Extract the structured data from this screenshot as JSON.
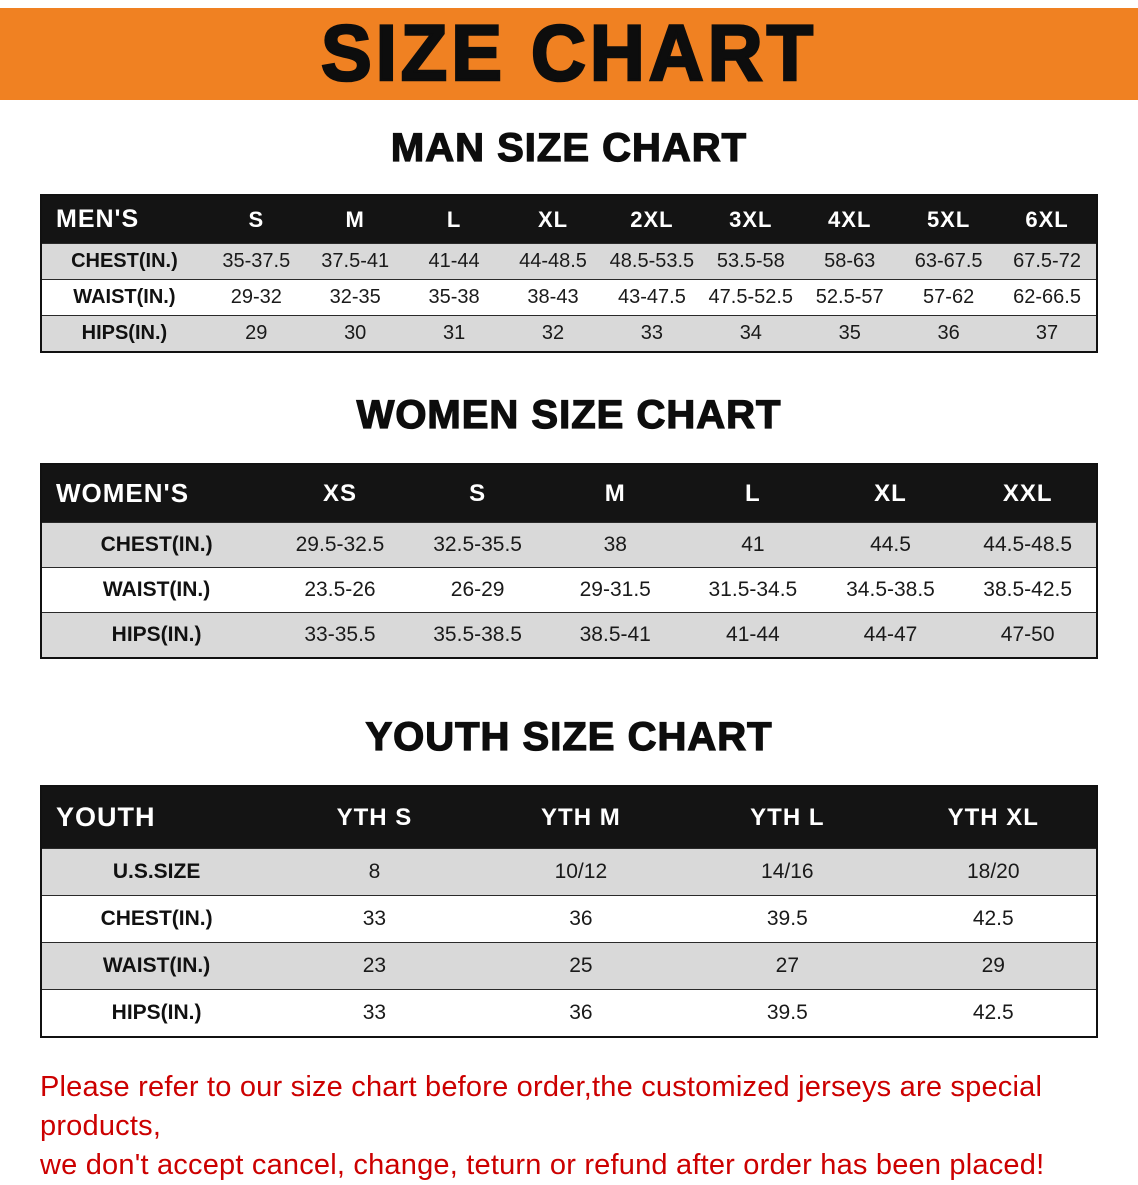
{
  "banner": {
    "title": "SIZE CHART"
  },
  "colors": {
    "banner_bg": "#f08122",
    "table_header_bg": "#141414",
    "alt_row_bg": "#d9d9d9",
    "disclaimer_text": "#cc0000"
  },
  "sections": [
    {
      "heading": "MAN SIZE CHART",
      "table": {
        "header": [
          "MEN'S",
          "S",
          "M",
          "L",
          "XL",
          "2XL",
          "3XL",
          "4XL",
          "5XL",
          "6XL"
        ],
        "rows": [
          {
            "label": "CHEST(IN.)",
            "values": [
              "35-37.5",
              "37.5-41",
              "41-44",
              "44-48.5",
              "48.5-53.5",
              "53.5-58",
              "58-63",
              "63-67.5",
              "67.5-72"
            ]
          },
          {
            "label": "WAIST(IN.)",
            "values": [
              "29-32",
              "32-35",
              "35-38",
              "38-43",
              "43-47.5",
              "47.5-52.5",
              "52.5-57",
              "57-62",
              "62-66.5"
            ]
          },
          {
            "label": "HIPS(IN.)",
            "values": [
              "29",
              "30",
              "31",
              "32",
              "33",
              "34",
              "35",
              "36",
              "37"
            ]
          }
        ]
      }
    },
    {
      "heading": "WOMEN SIZE CHART",
      "table": {
        "header": [
          "WOMEN'S",
          "XS",
          "S",
          "M",
          "L",
          "XL",
          "XXL"
        ],
        "rows": [
          {
            "label": "CHEST(IN.)",
            "values": [
              "29.5-32.5",
              "32.5-35.5",
              "38",
              "41",
              "44.5",
              "44.5-48.5"
            ]
          },
          {
            "label": "WAIST(IN.)",
            "values": [
              "23.5-26",
              "26-29",
              "29-31.5",
              "31.5-34.5",
              "34.5-38.5",
              "38.5-42.5"
            ]
          },
          {
            "label": "HIPS(IN.)",
            "values": [
              "33-35.5",
              "35.5-38.5",
              "38.5-41",
              "41-44",
              "44-47",
              "47-50"
            ]
          }
        ]
      }
    },
    {
      "heading": "YOUTH SIZE CHART",
      "table": {
        "header": [
          "YOUTH",
          "YTH S",
          "YTH M",
          "YTH L",
          "YTH XL"
        ],
        "rows": [
          {
            "label": "U.S.SIZE",
            "values": [
              "8",
              "10/12",
              "14/16",
              "18/20"
            ]
          },
          {
            "label": "CHEST(IN.)",
            "values": [
              "33",
              "36",
              "39.5",
              "42.5"
            ]
          },
          {
            "label": "WAIST(IN.)",
            "values": [
              "23",
              "25",
              "27",
              "29"
            ]
          },
          {
            "label": "HIPS(IN.)",
            "values": [
              "33",
              "36",
              "39.5",
              "42.5"
            ]
          }
        ]
      }
    }
  ],
  "disclaimer": {
    "line1": "Please refer to our size chart before order,the customized jerseys are special products,",
    "line2": "we don't accept cancel, change, teturn or refund after order has been placed!"
  }
}
